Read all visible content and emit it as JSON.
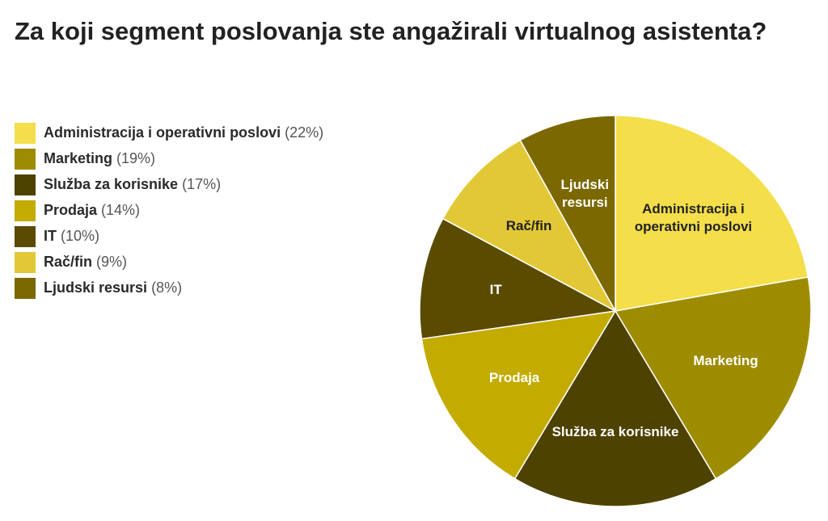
{
  "chart_data": {
    "type": "pie",
    "title": "Za koji segment poslovanja ste angažirali virtualnog asistenta?",
    "categories": [
      "Administracija i operativni poslovi",
      "Marketing",
      "Služba za korisnike",
      "Prodaja",
      "IT",
      "Rač/fin",
      "Ljudski resursi"
    ],
    "values": [
      22,
      19,
      17,
      14,
      10,
      9,
      8
    ],
    "value_labels": [
      "(22%)",
      "(19%)",
      "(17%)",
      "(14%)",
      "(10%)",
      "(9%)",
      "(8%)"
    ],
    "colors": [
      "#f4de4a",
      "#9e8c00",
      "#4e4200",
      "#c3ab00",
      "#5a4b00",
      "#e2c836",
      "#7b6800"
    ],
    "legend": "left"
  }
}
